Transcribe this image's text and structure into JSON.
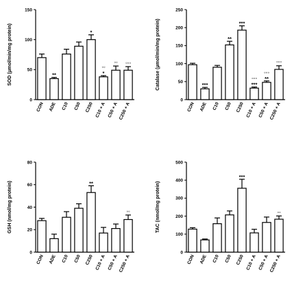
{
  "chart_data": [
    {
      "type": "bar",
      "ylabel": "SOD (µmol/min/mg protein)",
      "ylim": [
        0,
        150
      ],
      "yticks": [
        0,
        50,
        100,
        150
      ],
      "categories": [
        "CON",
        "ADE",
        "C10",
        "C50",
        "C250",
        "C10 + A",
        "C50 + A",
        "C250 + A"
      ],
      "values": [
        70,
        35,
        76,
        89,
        100,
        38,
        49,
        49
      ],
      "errors": [
        6,
        2,
        8,
        7,
        8,
        2,
        7,
        6
      ],
      "annotations": [
        "",
        "**",
        "",
        "",
        "*",
        "*",
        "",
        ""
      ],
      "annotations2": [
        "",
        "",
        "",
        "",
        "",
        "◦◦",
        "◦◦",
        "◦◦◦"
      ]
    },
    {
      "type": "bar",
      "ylabel": "Catalase (µmol/min/mg protein)",
      "ylim": [
        0,
        250
      ],
      "yticks": [
        0,
        50,
        100,
        150,
        200,
        250
      ],
      "categories": [
        "CON",
        "ADE",
        "C10",
        "C50",
        "C250",
        "C10 + A",
        "C50 + A",
        "C250 + A"
      ],
      "values": [
        97,
        30,
        90,
        152,
        193,
        32,
        48,
        84
      ],
      "errors": [
        4,
        4,
        5,
        10,
        12,
        3,
        4,
        10
      ],
      "annotations": [
        "",
        "***",
        "",
        "**",
        "***",
        "***",
        "**",
        ""
      ],
      "annotations2": [
        "",
        "",
        "",
        "",
        "",
        "◦◦◦",
        "◦◦◦",
        "◦◦◦"
      ]
    },
    {
      "type": "bar",
      "ylabel": "GSH (nmol/mg protein)",
      "ylim": [
        0,
        80
      ],
      "yticks": [
        0,
        20,
        40,
        60,
        80
      ],
      "categories": [
        "CON",
        "ADE",
        "C10",
        "C50",
        "C250",
        "C10 + A",
        "C50 + A",
        "C250 + A"
      ],
      "values": [
        28,
        12,
        31,
        39,
        53,
        17,
        21,
        29
      ],
      "errors": [
        2,
        4,
        5,
        4,
        6,
        5,
        4,
        4
      ],
      "annotations": [
        "",
        "",
        "",
        "",
        "**",
        "",
        "",
        ""
      ],
      "annotations2": [
        "",
        "",
        "",
        "",
        "",
        "",
        "",
        "◦◦"
      ]
    },
    {
      "type": "bar",
      "ylabel": "TAC (nmol/mg protein)",
      "ylim": [
        0,
        500
      ],
      "yticks": [
        0,
        100,
        200,
        300,
        400,
        500
      ],
      "categories": [
        "CON",
        "ADE",
        "C10",
        "C50",
        "C250",
        "C10 + A",
        "C50 + A",
        "C250 + A"
      ],
      "values": [
        128,
        68,
        158,
        207,
        355,
        107,
        165,
        183
      ],
      "errors": [
        8,
        5,
        32,
        22,
        50,
        20,
        30,
        18
      ],
      "annotations": [
        "",
        "",
        "",
        "",
        "***",
        "",
        "",
        ""
      ],
      "annotations2": [
        "",
        "",
        "",
        "",
        "",
        "",
        "",
        "◦◦"
      ]
    }
  ]
}
